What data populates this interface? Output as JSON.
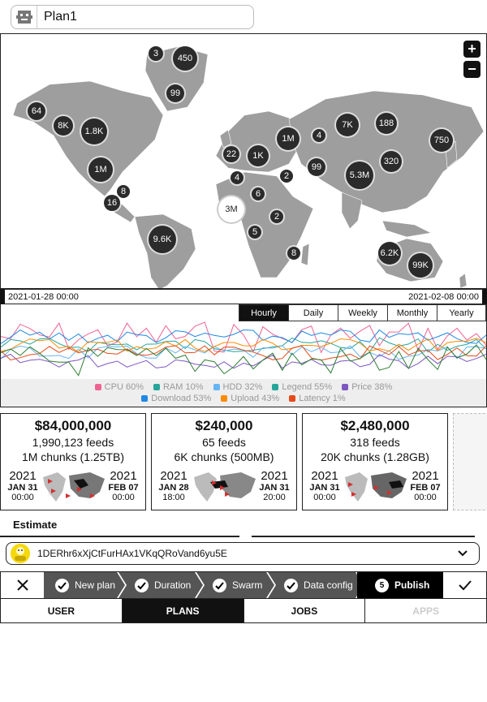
{
  "header": {
    "title": "Plan1"
  },
  "map": {
    "zoom_in": "+",
    "zoom_out": "−",
    "clusters": [
      {
        "label": "3"
      },
      {
        "label": "450"
      },
      {
        "label": "99"
      },
      {
        "label": "64"
      },
      {
        "label": "8K"
      },
      {
        "label": "1.8K"
      },
      {
        "label": "1M"
      },
      {
        "label": "8"
      },
      {
        "label": "16"
      },
      {
        "label": "9.6K"
      },
      {
        "label": "22"
      },
      {
        "label": "1K"
      },
      {
        "label": "4"
      },
      {
        "label": "2"
      },
      {
        "label": "6"
      },
      {
        "label": "3M"
      },
      {
        "label": "5"
      },
      {
        "label": "2"
      },
      {
        "label": "8"
      },
      {
        "label": "1M"
      },
      {
        "label": "4"
      },
      {
        "label": "99"
      },
      {
        "label": "7K"
      },
      {
        "label": "188"
      },
      {
        "label": "5.3M"
      },
      {
        "label": "320"
      },
      {
        "label": "750"
      },
      {
        "label": "6.2K"
      },
      {
        "label": "99K"
      }
    ]
  },
  "timeline": {
    "start": "2021-01-28 00:00",
    "end": "2021-02-08 00:00"
  },
  "ranges": [
    "Hourly",
    "Daily",
    "Weekly",
    "Monthly",
    "Yearly"
  ],
  "legend": {
    "row1": [
      {
        "label": "CPU 60%",
        "color": "#f06292"
      },
      {
        "label": "RAM 10%",
        "color": "#26a69a"
      },
      {
        "label": "HDD 32%",
        "color": "#64b5f6"
      },
      {
        "label": "Legend 55%",
        "color": "#26a69a"
      },
      {
        "label": "Price 38%",
        "color": "#7e57c2"
      }
    ],
    "row2": [
      {
        "label": "Download 53%",
        "color": "#1e88e5"
      },
      {
        "label": "Upload 43%",
        "color": "#fb8c00"
      },
      {
        "label": "Latency 1%",
        "color": "#e64a19"
      }
    ]
  },
  "cards": [
    {
      "amount": "$84,000,000",
      "line1": "1,990,123 feeds",
      "line2": "1M chunks (1.25TB)",
      "start": {
        "year": "2021",
        "md": "JAN 31",
        "time": "00:00"
      },
      "end": {
        "year": "2021",
        "md": "FEB 07",
        "time": "00:00"
      }
    },
    {
      "amount": "$240,000",
      "line1": "65 feeds",
      "line2": "6K chunks (500MB)",
      "start": {
        "year": "2021",
        "md": "JAN 28",
        "time": "18:00"
      },
      "end": {
        "year": "2021",
        "md": "JAN 31",
        "time": "20:00"
      }
    },
    {
      "amount": "$2,480,000",
      "line1": "318 feeds",
      "line2": "20K chunks (1.28GB)",
      "start": {
        "year": "2021",
        "md": "JAN 31",
        "time": "00:00"
      },
      "end": {
        "year": "2021",
        "md": "FEB 07",
        "time": "00:00"
      }
    }
  ],
  "estimate": {
    "label": "Estimate"
  },
  "account": {
    "address": "1DERhr6xXjCtFurHAx1VKqQRoVand6yu5E"
  },
  "wizard": {
    "steps": [
      {
        "label": "New plan"
      },
      {
        "label": "Duration"
      },
      {
        "label": "Swarm"
      },
      {
        "label": "Data config"
      },
      {
        "label": "Publish",
        "num": "5"
      }
    ]
  },
  "tabs": [
    "USER",
    "PLANS",
    "JOBS",
    "APPS"
  ]
}
